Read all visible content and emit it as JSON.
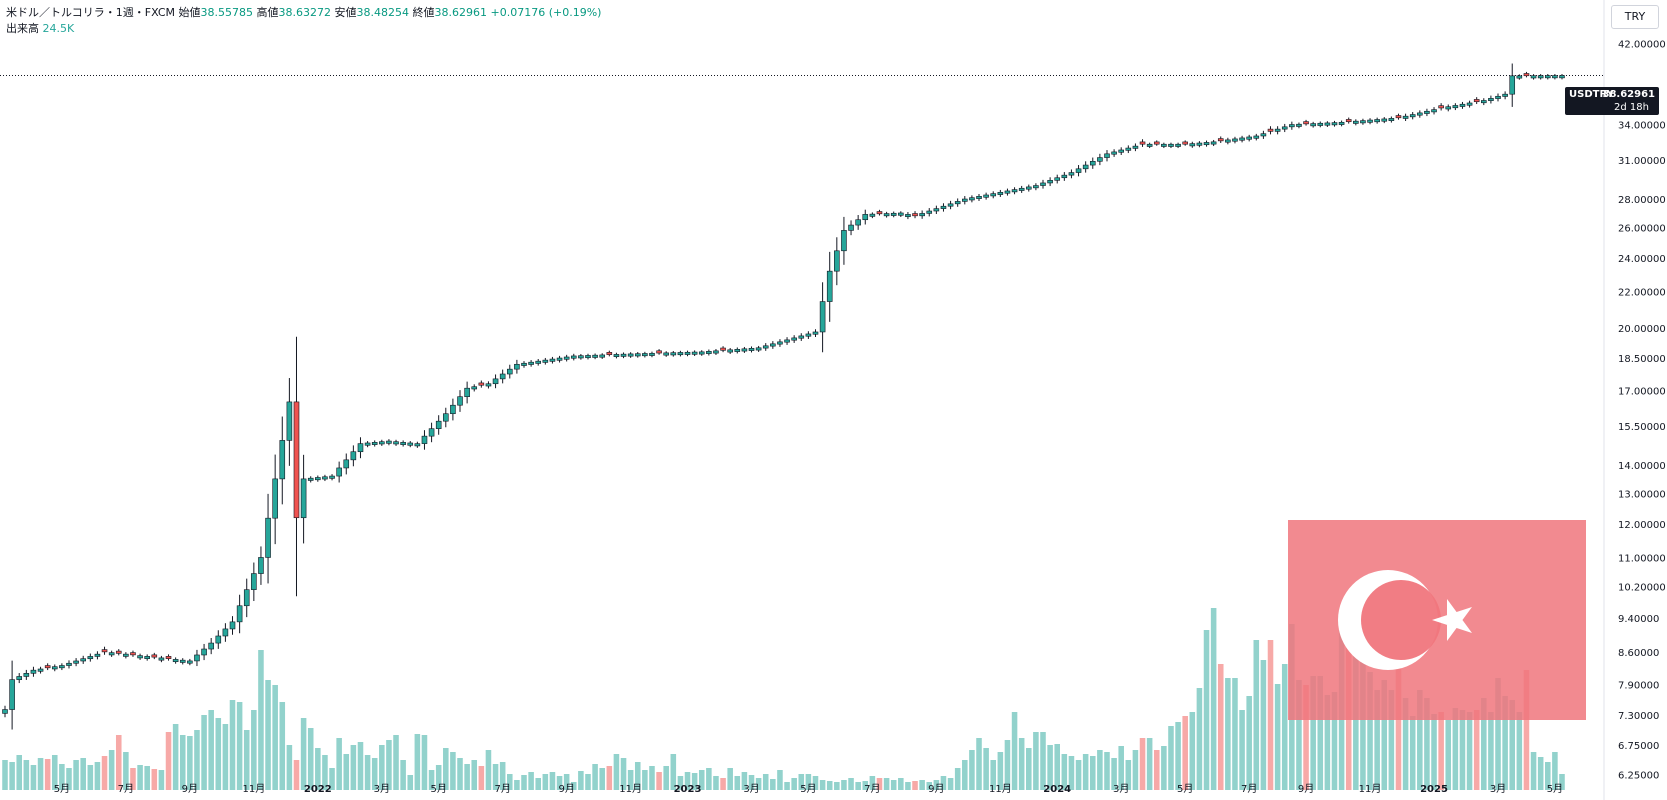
{
  "legend": {
    "title": "米ドル／トルコリラ・1週・FXCM",
    "open_label": "始値",
    "open": "38.55785",
    "high_label": "高値",
    "high": "38.63272",
    "low_label": "安値",
    "low": "38.48254",
    "close_label": "終値",
    "close": "38.62961",
    "change": "+0.07176 (+0.19%)",
    "volume_label": "出来高",
    "volume": "24.5K"
  },
  "currency_button": "TRY",
  "price_tag": {
    "symbol": "USDTRY",
    "price": "38.62961",
    "countdown": "2d 18h"
  },
  "colors": {
    "up": "#26a69a",
    "down": "#ef5350",
    "flag": "#f0767d"
  },
  "flag_icon": "turkey-flag",
  "chart_data": {
    "type": "candlestick",
    "title": "米ドル／トルコリラ・1週・FXCM",
    "y_scale": "log",
    "ylim": [
      6.0,
      43.5
    ],
    "y_ticks": [
      "6.25000",
      "6.75000",
      "7.30000",
      "7.90000",
      "8.60000",
      "9.40000",
      "10.20000",
      "11.00000",
      "12.00000",
      "13.00000",
      "14.00000",
      "15.50000",
      "17.00000",
      "18.50000",
      "20.00000",
      "22.00000",
      "24.00000",
      "26.00000",
      "28.00000",
      "31.00000",
      "34.00000",
      "42.00000"
    ],
    "x_ticks": [
      "5月",
      "7月",
      "9月",
      "11月",
      "2022",
      "3月",
      "5月",
      "7月",
      "9月",
      "11月",
      "2023",
      "3月",
      "5月",
      "7月",
      "9月",
      "11月",
      "2024",
      "3月",
      "5月",
      "7月",
      "9月",
      "11月",
      "2025",
      "3月",
      "5月"
    ],
    "x_tick_weeks": [
      8,
      17,
      26,
      35,
      44,
      53,
      61,
      70,
      79,
      88,
      96,
      105,
      113,
      122,
      131,
      140,
      148,
      157,
      166,
      175,
      183,
      192,
      201,
      210,
      218
    ],
    "close_anchors": [
      [
        0,
        7.4
      ],
      [
        1,
        8.0
      ],
      [
        4,
        8.2
      ],
      [
        8,
        8.3
      ],
      [
        14,
        8.6
      ],
      [
        20,
        8.5
      ],
      [
        26,
        8.4
      ],
      [
        29,
        8.8
      ],
      [
        32,
        9.3
      ],
      [
        36,
        11.0
      ],
      [
        38,
        13.5
      ],
      [
        40,
        16.5
      ],
      [
        41,
        12.2
      ],
      [
        42,
        13.5
      ],
      [
        46,
        13.6
      ],
      [
        50,
        14.8
      ],
      [
        54,
        14.9
      ],
      [
        58,
        14.8
      ],
      [
        62,
        16.0
      ],
      [
        65,
        17.1
      ],
      [
        68,
        17.3
      ],
      [
        72,
        18.2
      ],
      [
        80,
        18.6
      ],
      [
        88,
        18.7
      ],
      [
        98,
        18.8
      ],
      [
        106,
        19.0
      ],
      [
        114,
        19.8
      ],
      [
        116,
        23.2
      ],
      [
        118,
        25.8
      ],
      [
        121,
        26.9
      ],
      [
        126,
        27.0
      ],
      [
        128,
        26.8
      ],
      [
        135,
        28.0
      ],
      [
        145,
        29.0
      ],
      [
        150,
        30.0
      ],
      [
        155,
        31.5
      ],
      [
        160,
        32.3
      ],
      [
        166,
        32.3
      ],
      [
        170,
        32.5
      ],
      [
        176,
        33.0
      ],
      [
        181,
        34.0
      ],
      [
        188,
        34.2
      ],
      [
        196,
        34.6
      ],
      [
        202,
        35.5
      ],
      [
        208,
        36.2
      ],
      [
        211,
        36.8
      ],
      [
        212,
        38.6
      ],
      [
        213,
        38.6
      ],
      [
        217,
        38.62961
      ]
    ],
    "down_weeks": [
      6,
      14,
      16,
      18,
      21,
      23,
      41,
      67,
      85,
      92,
      101,
      123,
      128,
      160,
      162,
      166,
      171,
      178,
      183,
      189,
      196,
      202,
      207,
      214
    ],
    "volume": [
      30,
      28,
      35,
      30,
      25,
      32,
      31,
      35,
      26,
      22,
      30,
      32,
      25,
      28,
      34,
      40,
      55,
      38,
      22,
      25,
      24,
      21,
      20,
      58,
      66,
      55,
      54,
      60,
      75,
      80,
      72,
      66,
      90,
      88,
      60,
      80,
      140,
      110,
      105,
      88,
      45,
      30,
      72,
      62,
      42,
      35,
      22,
      52,
      36,
      45,
      48,
      35,
      32,
      45,
      50,
      55,
      30,
      15,
      56,
      55,
      20,
      25,
      42,
      38,
      32,
      26,
      30,
      24,
      40,
      26,
      28,
      16,
      10,
      15,
      18,
      12,
      16,
      18,
      14,
      16,
      8,
      19,
      16,
      26,
      22,
      24,
      36,
      32,
      20,
      28,
      20,
      24,
      18,
      24,
      36,
      14,
      18,
      17,
      20,
      22,
      14,
      12,
      22,
      14,
      18,
      15,
      12,
      16,
      11,
      20,
      8,
      12,
      16,
      16,
      14,
      10,
      9,
      8,
      10,
      12,
      8,
      9,
      14,
      12,
      12,
      10,
      12,
      8,
      9,
      10,
      8,
      10,
      14,
      12,
      22,
      30,
      40,
      52,
      42,
      30,
      38,
      50,
      78,
      52,
      42,
      58,
      58,
      45,
      46,
      36,
      34,
      30,
      36,
      34,
      40,
      38,
      32,
      44,
      30,
      40,
      52,
      52,
      40,
      44,
      64,
      68,
      74,
      78,
      102,
      160,
      182,
      126,
      112,
      112,
      80,
      94,
      150,
      130,
      150,
      106,
      126,
      166,
      110,
      105,
      114,
      114,
      95,
      98,
      160,
      176,
      154,
      138,
      118,
      100,
      110,
      100,
      124,
      92,
      74,
      100,
      92,
      76,
      78,
      70,
      82,
      80,
      78,
      80,
      92,
      78,
      112,
      94,
      90,
      78,
      120,
      38,
      33,
      28,
      38,
      16
    ]
  }
}
